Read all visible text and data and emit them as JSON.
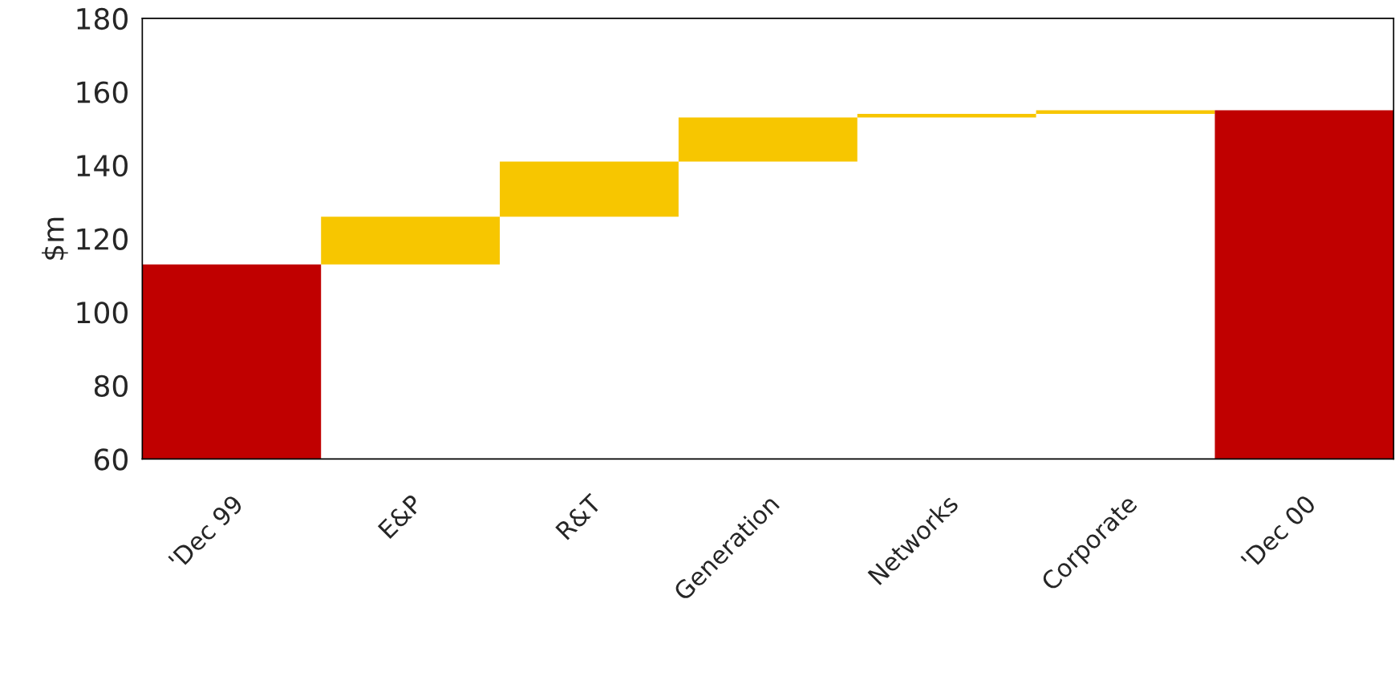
{
  "chart_data": {
    "type": "bar",
    "ylabel": "$m",
    "categories": [
      "'Dec 99",
      "E&P",
      "R&T",
      "Generation",
      "Networks",
      "Corporate",
      "'Dec 00"
    ],
    "values": [
      113,
      13,
      15,
      12,
      1,
      1,
      155
    ],
    "base": [
      null,
      113,
      126,
      141,
      153,
      154,
      null
    ],
    "colors": [
      "#c00000",
      "#f7c600",
      "#f7c600",
      "#f7c600",
      "#f7c600",
      "#f7c600",
      "#c00000"
    ],
    "ylim": [
      60,
      180
    ],
    "yticks": [
      60,
      80,
      100,
      120,
      140,
      160,
      180
    ],
    "grid": false,
    "legend": false
  }
}
